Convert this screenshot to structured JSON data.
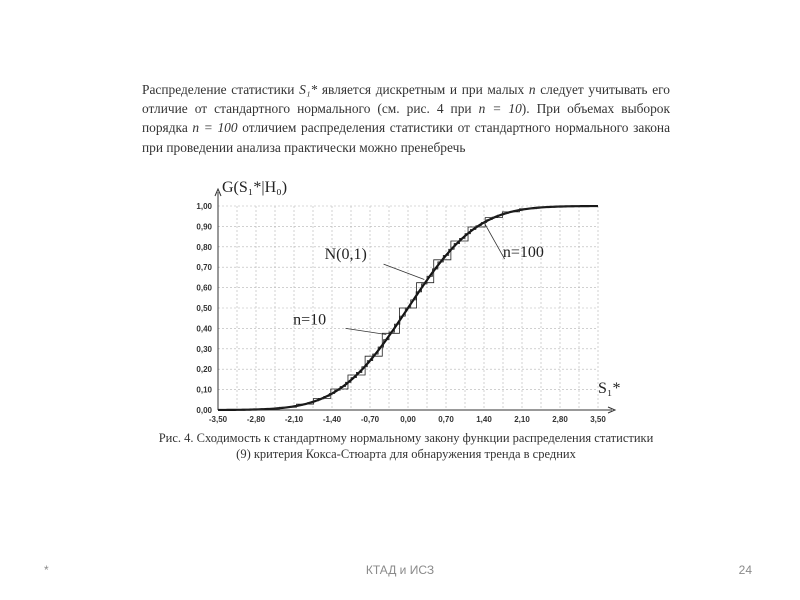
{
  "paragraph": {
    "p1": "Распределение статистики ",
    "stat": "S₁*",
    "p2": " является дискретным и при малых ",
    "n1": "n",
    "p3": " следует учитывать его отличие от стандартного нормального (см. рис. 4 при ",
    "n2": "n = 10",
    "p4": "). При объемах выборок порядка ",
    "n3": "n = 100",
    "p5": " отличием распределения статистики от стандартного нормального закона при проведении анализа практически можно пренебречь"
  },
  "caption": {
    "line1": "Рис. 4. Сходимость к стандартному нормальному закону функции распределения статистики",
    "line2": "(9) критерия Кокса-Стюарта для обнаружения тренда в средних"
  },
  "footer": {
    "left": "*",
    "center": "КТАД и ИСЗ",
    "page": "24"
  },
  "chart_data": {
    "type": "line",
    "ylabel": "G(S₁*|H₀)",
    "xlabel": "S₁*",
    "xlim": [
      -3.5,
      3.5
    ],
    "ylim": [
      0,
      1
    ],
    "x_ticks": [
      "-3,50",
      "-2,80",
      "-2,10",
      "-1,40",
      "-0,70",
      "0,00",
      "0,70",
      "1,40",
      "2,10",
      "2,80",
      "3,50"
    ],
    "y_ticks": [
      "0,00",
      "0,10",
      "0,20",
      "0,30",
      "0,40",
      "0,50",
      "0,60",
      "0,70",
      "0,80",
      "0,90",
      "1,00"
    ],
    "grid": true,
    "series": [
      {
        "name": "N(0,1)",
        "kind": "normal-cdf"
      },
      {
        "name": "n=10",
        "kind": "step",
        "step_width": 0.316
      },
      {
        "name": "n=100",
        "kind": "step",
        "step_width": 0.1
      }
    ],
    "annotations": [
      {
        "text": "N(0,1)",
        "at": [
          -0.1,
          0.74
        ]
      },
      {
        "text": "n=10",
        "at": [
          -1.6,
          0.42
        ]
      },
      {
        "text": "n=100",
        "at": [
          2.3,
          0.75
        ]
      }
    ]
  }
}
